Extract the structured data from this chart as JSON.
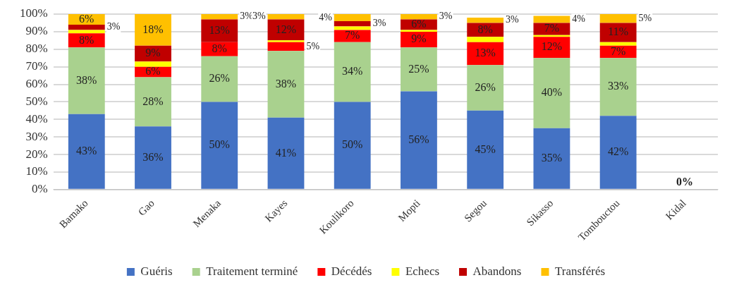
{
  "chart_data": {
    "type": "bar",
    "stacked": true,
    "categories": [
      "Bamako",
      "Gao",
      "Menaka",
      "Kayes",
      "Koulikoro",
      "Mopti",
      "Segou",
      "Sikasso",
      "Tombouctou",
      "Kidal"
    ],
    "series": [
      {
        "name": "Guéris",
        "color": "#4472c4",
        "values": [
          43,
          36,
          50,
          41,
          50,
          56,
          45,
          35,
          42,
          0
        ],
        "value_labels": [
          "43%",
          "36%",
          "50%",
          "41%",
          "50%",
          "56%",
          "45%",
          "35%",
          "42%",
          null
        ]
      },
      {
        "name": "Traitement terminé",
        "color": "#a9d18e",
        "values": [
          38,
          28,
          26,
          38,
          34,
          25,
          26,
          40,
          33,
          0
        ],
        "value_labels": [
          "38%",
          "28%",
          "26%",
          "38%",
          "34%",
          "25%",
          "26%",
          "40%",
          "33%",
          null
        ]
      },
      {
        "name": "Décédés",
        "color": "#ff0000",
        "values": [
          8,
          6,
          8,
          5,
          7,
          9,
          13,
          12,
          7,
          0
        ],
        "value_labels": [
          "8%",
          "6%",
          "8%",
          "5%",
          "7%",
          "9%",
          "13%",
          "12%",
          "7%",
          null
        ]
      },
      {
        "name": "Echecs",
        "color": "#ffff00",
        "values": [
          2,
          3,
          0,
          1,
          2,
          1,
          3,
          1,
          2,
          0
        ],
        "value_labels": [
          null,
          null,
          null,
          null,
          null,
          null,
          null,
          null,
          null,
          null
        ]
      },
      {
        "name": "Abandons",
        "color": "#c00000",
        "values": [
          3,
          9,
          13,
          12,
          3,
          6,
          8,
          7,
          11,
          0
        ],
        "value_labels": [
          "3%",
          "9%",
          "13%",
          "12%",
          "3%",
          "6%",
          "8%",
          "7%",
          "11%",
          null
        ]
      },
      {
        "name": "Transférés",
        "color": "#ffc000",
        "values": [
          6,
          18,
          3,
          3,
          4,
          3,
          3,
          4,
          5,
          0
        ],
        "value_labels": [
          "6%",
          "18%",
          "3%",
          "3%",
          "4%",
          "3%",
          "3%",
          "4%",
          "5%",
          "0%"
        ]
      }
    ],
    "ylim": [
      0,
      100
    ],
    "yticks": [
      {
        "value": 0,
        "label": "0%"
      },
      {
        "value": 10,
        "label": "10%"
      },
      {
        "value": 20,
        "label": "20%"
      },
      {
        "value": 30,
        "label": "30%"
      },
      {
        "value": 40,
        "label": "40%"
      },
      {
        "value": 50,
        "label": "50%"
      },
      {
        "value": 60,
        "label": "60%"
      },
      {
        "value": 70,
        "label": "70%"
      },
      {
        "value": 80,
        "label": "80%"
      },
      {
        "value": 90,
        "label": "90%"
      },
      {
        "value": 100,
        "label": "100%"
      }
    ],
    "grid": "y",
    "legend": "bottom"
  }
}
